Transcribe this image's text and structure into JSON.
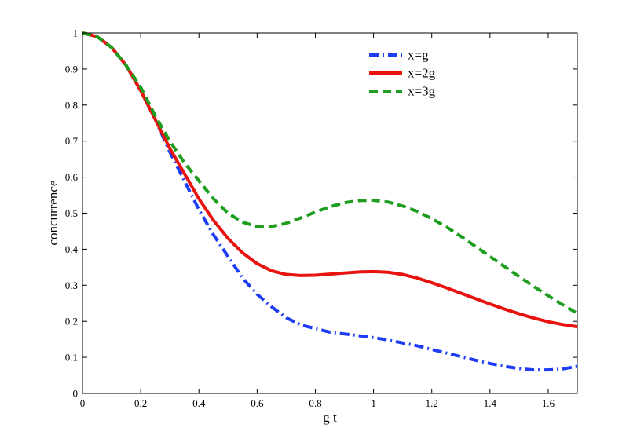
{
  "chart_data": {
    "type": "line",
    "title": "",
    "xlabel": "g t",
    "ylabel": "concurrence",
    "xlim": [
      0,
      1.7
    ],
    "ylim": [
      0,
      1
    ],
    "xticks": [
      0,
      0.2,
      0.4,
      0.6,
      0.8,
      1,
      1.2,
      1.4,
      1.6
    ],
    "xtick_labels": [
      "0",
      "0.2",
      "0.4",
      "0.6",
      "0.8",
      "1",
      "1.2",
      "1.4",
      "1.6"
    ],
    "yticks": [
      0,
      0.1,
      0.2,
      0.3,
      0.4,
      0.5,
      0.6,
      0.7,
      0.8,
      0.9,
      1
    ],
    "ytick_labels": [
      "0",
      "0.1",
      "0.2",
      "0.3",
      "0.4",
      "0.5",
      "0.6",
      "0.7",
      "0.8",
      "0.9",
      "1"
    ],
    "grid": false,
    "legend_position": "top-right",
    "series": [
      {
        "name": "x=g",
        "color": "#1f3df5",
        "style": "dashdot",
        "x": [
          0,
          0.05,
          0.1,
          0.15,
          0.2,
          0.25,
          0.3,
          0.35,
          0.4,
          0.45,
          0.5,
          0.55,
          0.6,
          0.65,
          0.7,
          0.75,
          0.8,
          0.85,
          0.9,
          0.95,
          1.0,
          1.05,
          1.1,
          1.15,
          1.2,
          1.25,
          1.3,
          1.35,
          1.4,
          1.45,
          1.5,
          1.55,
          1.6,
          1.65,
          1.7
        ],
        "y": [
          1.0,
          0.99,
          0.96,
          0.91,
          0.84,
          0.76,
          0.67,
          0.59,
          0.51,
          0.44,
          0.38,
          0.32,
          0.275,
          0.24,
          0.21,
          0.19,
          0.18,
          0.17,
          0.165,
          0.16,
          0.155,
          0.148,
          0.14,
          0.132,
          0.122,
          0.112,
          0.102,
          0.092,
          0.083,
          0.075,
          0.069,
          0.065,
          0.065,
          0.068,
          0.075
        ]
      },
      {
        "name": "x=2g",
        "color": "#e8130f",
        "style": "solid",
        "x": [
          0,
          0.05,
          0.1,
          0.15,
          0.2,
          0.25,
          0.3,
          0.35,
          0.4,
          0.45,
          0.5,
          0.55,
          0.6,
          0.65,
          0.7,
          0.75,
          0.8,
          0.85,
          0.9,
          0.95,
          1.0,
          1.05,
          1.1,
          1.15,
          1.2,
          1.25,
          1.3,
          1.35,
          1.4,
          1.45,
          1.5,
          1.55,
          1.6,
          1.65,
          1.7
        ],
        "y": [
          1.0,
          0.99,
          0.96,
          0.91,
          0.84,
          0.76,
          0.68,
          0.61,
          0.54,
          0.48,
          0.43,
          0.39,
          0.36,
          0.34,
          0.33,
          0.327,
          0.328,
          0.331,
          0.334,
          0.337,
          0.338,
          0.336,
          0.33,
          0.32,
          0.307,
          0.293,
          0.278,
          0.263,
          0.248,
          0.234,
          0.221,
          0.209,
          0.199,
          0.191,
          0.185
        ]
      },
      {
        "name": "x=3g",
        "color": "#1e9e1e",
        "style": "dashed",
        "x": [
          0,
          0.05,
          0.1,
          0.15,
          0.2,
          0.25,
          0.3,
          0.35,
          0.4,
          0.45,
          0.5,
          0.55,
          0.6,
          0.65,
          0.7,
          0.75,
          0.8,
          0.85,
          0.9,
          0.95,
          1.0,
          1.05,
          1.1,
          1.15,
          1.2,
          1.25,
          1.3,
          1.35,
          1.4,
          1.45,
          1.5,
          1.55,
          1.6,
          1.65,
          1.7
        ],
        "y": [
          1.0,
          0.99,
          0.96,
          0.91,
          0.85,
          0.77,
          0.7,
          0.64,
          0.59,
          0.54,
          0.5,
          0.475,
          0.463,
          0.463,
          0.472,
          0.487,
          0.503,
          0.518,
          0.529,
          0.535,
          0.536,
          0.531,
          0.52,
          0.505,
          0.485,
          0.462,
          0.436,
          0.408,
          0.38,
          0.352,
          0.324,
          0.297,
          0.271,
          0.246,
          0.222
        ]
      }
    ]
  }
}
